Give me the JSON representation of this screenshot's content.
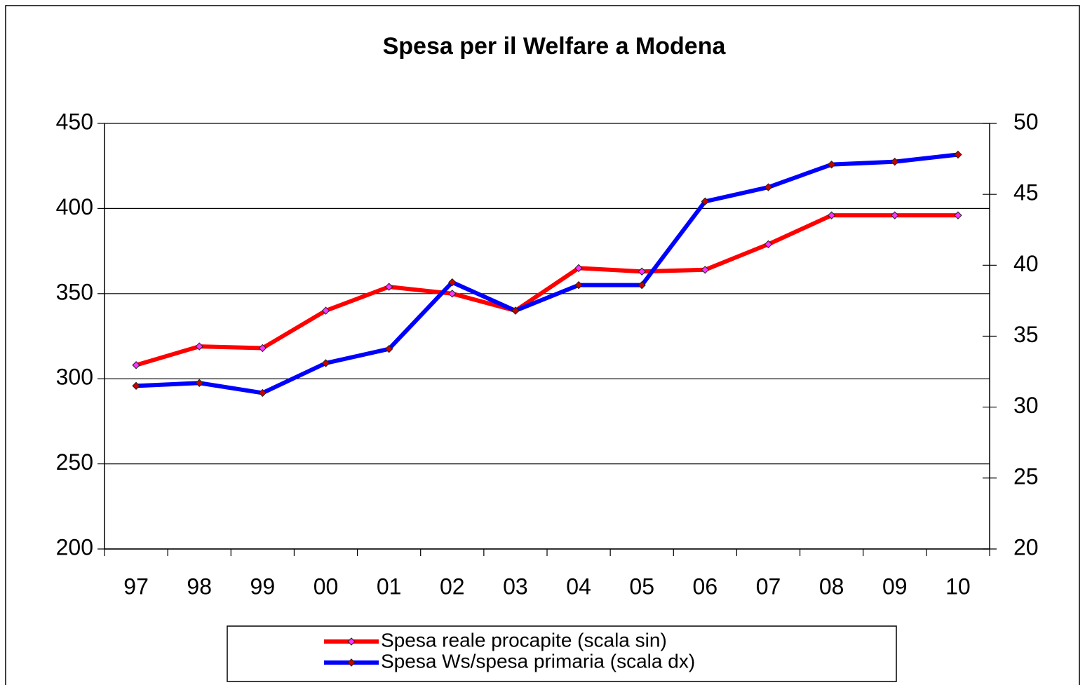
{
  "chart_data": {
    "type": "line",
    "title": "Spesa per il Welfare a Modena",
    "categories": [
      "97",
      "98",
      "99",
      "00",
      "01",
      "02",
      "03",
      "04",
      "05",
      "06",
      "07",
      "08",
      "09",
      "10"
    ],
    "series": [
      {
        "name": "Spesa reale procapite (scala sin)",
        "color": "#ff0000",
        "marker_color": "#ff33ff",
        "values": [
          308,
          319,
          318,
          340,
          354,
          350,
          340,
          365,
          363,
          364,
          379,
          396,
          396,
          396
        ]
      },
      {
        "name": "Spesa Ws/spesa primaria (scala dx)",
        "color": "#0000ff",
        "marker_color": "#cc0000",
        "axis": "y2",
        "values": [
          31.5,
          31.7,
          31.0,
          33.1,
          34.1,
          38.8,
          36.8,
          38.6,
          38.6,
          44.5,
          45.5,
          47.1,
          47.3,
          47.8
        ]
      }
    ],
    "ylim": [
      200,
      450
    ],
    "yticks": [
      200,
      250,
      300,
      350,
      400,
      450
    ],
    "y2lim": [
      20,
      50
    ],
    "y2ticks": [
      20,
      25,
      30,
      35,
      40,
      45,
      50
    ],
    "grid": true,
    "legend": "bottom"
  }
}
